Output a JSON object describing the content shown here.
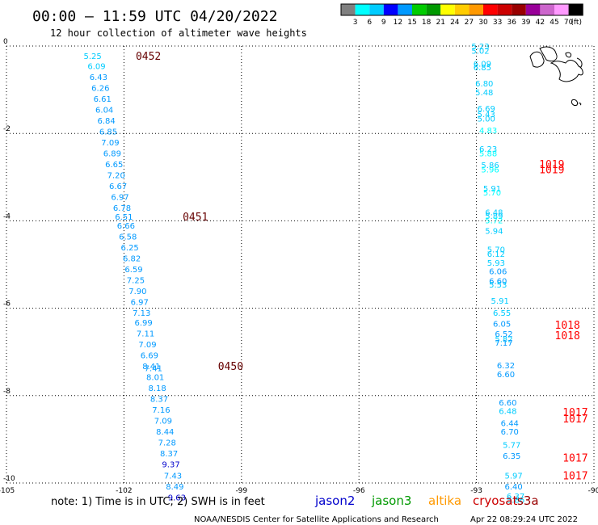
{
  "header": {
    "title": "00:00 — 11:59 UTC 04/20/2022",
    "subtitle": "12 hour collection of altimeter wave heights"
  },
  "legend": {
    "colors": [
      "#808080",
      "#00ffff",
      "#00ccff",
      "#0000ff",
      "#0099ff",
      "#00cc00",
      "#009900",
      "#ffff00",
      "#ffcc00",
      "#ff9900",
      "#ff0000",
      "#cc0000",
      "#990000",
      "#990099",
      "#cc66cc",
      "#ff99ff",
      "#000000"
    ],
    "labels": [
      "3",
      "6",
      "9",
      "12",
      "15",
      "18",
      "21",
      "24",
      "27",
      "30",
      "33",
      "36",
      "39",
      "42",
      "45",
      "70"
    ],
    "unit": "(ft)"
  },
  "note": "note:  1) Time is in UTC; 2) SWH is in feet",
  "satellites": [
    {
      "name": "jason2",
      "color": "#0000cc"
    },
    {
      "name": "jason3",
      "color": "#009900"
    },
    {
      "name": "altika",
      "color": "#ff9900"
    },
    {
      "name": "cryosat",
      "color": "#cc0000"
    },
    {
      "name": "s3a",
      "color": "#990000"
    }
  ],
  "footer": {
    "credit": "NOAA/NESDIS Center for Satellite Applications and Research",
    "timestamp": "Apr 22 08:29:24 UTC 2022"
  },
  "chart_data": {
    "type": "scatter",
    "title": "00:00 — 11:59 UTC 04/20/2022",
    "subtitle": "12 hour collection of altimeter wave heights",
    "xlim": [
      -105,
      -90
    ],
    "ylim": [
      -10,
      0
    ],
    "xticks": [
      -105,
      -102,
      -99,
      -96,
      -93,
      -90
    ],
    "yticks": [
      0,
      -2,
      -4,
      -6,
      -8,
      -10
    ],
    "xtick_labels": [
      "-105",
      "-102",
      "-99",
      "-96",
      "-93",
      "-90"
    ],
    "ytick_labels": [
      "0",
      "-2",
      "-4",
      "-6",
      "-8",
      "-10"
    ],
    "grid": true,
    "grid_style": "dotted",
    "units": "ft",
    "pass_labels": [
      {
        "text": "0452",
        "lon": -101.7,
        "lat": -0.22,
        "color": "#660000"
      },
      {
        "text": "0451",
        "lon": -100.5,
        "lat": -3.9,
        "color": "#660000"
      },
      {
        "text": "0450",
        "lon": -99.6,
        "lat": -7.32,
        "color": "#660000"
      },
      {
        "text": "1019",
        "lon": -91.4,
        "lat": -2.7,
        "color": "#ff0000"
      },
      {
        "text": "1019",
        "lon": -91.4,
        "lat": -2.82,
        "color": "#ff0000"
      },
      {
        "text": "1018",
        "lon": -91.0,
        "lat": -6.38,
        "color": "#ff0000"
      },
      {
        "text": "1018",
        "lon": -91.0,
        "lat": -6.62,
        "color": "#ff0000"
      },
      {
        "text": "1017",
        "lon": -90.8,
        "lat": -8.37,
        "color": "#ff0000"
      },
      {
        "text": "1017",
        "lon": -90.8,
        "lat": -8.52,
        "color": "#ff0000"
      },
      {
        "text": "1017",
        "lon": -90.8,
        "lat": -9.42,
        "color": "#ff0000"
      },
      {
        "text": "1017",
        "lon": -90.8,
        "lat": -9.82,
        "color": "#ff0000"
      }
    ],
    "tracks": [
      {
        "points": [
          {
            "lon": -102.8,
            "lat": -0.22,
            "v": "5.25",
            "color": "#00ccff"
          },
          {
            "lon": -102.7,
            "lat": -0.45,
            "v": "6.09",
            "color": "#00ccff"
          },
          {
            "lon": -102.65,
            "lat": -0.7,
            "v": "6.43",
            "color": "#0099ff"
          },
          {
            "lon": -102.6,
            "lat": -0.95,
            "v": "6.26",
            "color": "#0099ff"
          },
          {
            "lon": -102.55,
            "lat": -1.2,
            "v": "6.61",
            "color": "#0099ff"
          },
          {
            "lon": -102.5,
            "lat": -1.45,
            "v": "6.04",
            "color": "#0099ff"
          },
          {
            "lon": -102.45,
            "lat": -1.7,
            "v": "6.84",
            "color": "#0099ff"
          },
          {
            "lon": -102.4,
            "lat": -1.95,
            "v": "6.85",
            "color": "#0099ff"
          },
          {
            "lon": -102.35,
            "lat": -2.2,
            "v": "7.09",
            "color": "#0099ff"
          },
          {
            "lon": -102.3,
            "lat": -2.45,
            "v": "6.89",
            "color": "#0099ff"
          },
          {
            "lon": -102.25,
            "lat": -2.7,
            "v": "6.65",
            "color": "#0099ff"
          },
          {
            "lon": -102.2,
            "lat": -2.95,
            "v": "7.20",
            "color": "#0099ff"
          },
          {
            "lon": -102.15,
            "lat": -3.2,
            "v": "6.67",
            "color": "#0099ff"
          },
          {
            "lon": -102.1,
            "lat": -3.45,
            "v": "6.97",
            "color": "#0099ff"
          },
          {
            "lon": -102.05,
            "lat": -3.7,
            "v": "6.78",
            "color": "#0099ff"
          },
          {
            "lon": -102.0,
            "lat": -3.9,
            "v": "6.51",
            "color": "#0099ff"
          },
          {
            "lon": -101.95,
            "lat": -4.1,
            "v": "6.66",
            "color": "#0099ff"
          },
          {
            "lon": -101.9,
            "lat": -4.35,
            "v": "6.58",
            "color": "#0099ff"
          },
          {
            "lon": -101.85,
            "lat": -4.6,
            "v": "6.25",
            "color": "#0099ff"
          },
          {
            "lon": -101.8,
            "lat": -4.85,
            "v": "6.82",
            "color": "#0099ff"
          },
          {
            "lon": -101.75,
            "lat": -5.1,
            "v": "6.59",
            "color": "#0099ff"
          },
          {
            "lon": -101.7,
            "lat": -5.35,
            "v": "7.25",
            "color": "#0099ff"
          },
          {
            "lon": -101.65,
            "lat": -5.6,
            "v": "7.90",
            "color": "#0099ff"
          },
          {
            "lon": -101.6,
            "lat": -5.85,
            "v": "6.97",
            "color": "#0099ff"
          },
          {
            "lon": -101.55,
            "lat": -6.1,
            "v": "7.13",
            "color": "#0099ff"
          },
          {
            "lon": -101.5,
            "lat": -6.32,
            "v": "6.99",
            "color": "#0099ff"
          },
          {
            "lon": -101.45,
            "lat": -6.57,
            "v": "7.11",
            "color": "#0099ff"
          },
          {
            "lon": -101.4,
            "lat": -6.82,
            "v": "7.09",
            "color": "#0099ff"
          },
          {
            "lon": -101.35,
            "lat": -7.07,
            "v": "6.69",
            "color": "#0099ff"
          },
          {
            "lon": -101.3,
            "lat": -7.32,
            "v": "8.41",
            "color": "#0099ff"
          },
          {
            "lon": -101.25,
            "lat": -7.37,
            "v": "7.41",
            "color": "#0099ff"
          },
          {
            "lon": -101.2,
            "lat": -7.57,
            "v": "8.01",
            "color": "#0099ff"
          },
          {
            "lon": -101.15,
            "lat": -7.82,
            "v": "8.18",
            "color": "#0099ff"
          },
          {
            "lon": -101.1,
            "lat": -8.07,
            "v": "8.37",
            "color": "#0099ff"
          },
          {
            "lon": -101.05,
            "lat": -8.32,
            "v": "7.16",
            "color": "#0099ff"
          },
          {
            "lon": -101.0,
            "lat": -8.57,
            "v": "7.09",
            "color": "#0099ff"
          },
          {
            "lon": -100.95,
            "lat": -8.82,
            "v": "8.44",
            "color": "#0099ff"
          },
          {
            "lon": -100.9,
            "lat": -9.07,
            "v": "7.28",
            "color": "#0099ff"
          },
          {
            "lon": -100.85,
            "lat": -9.32,
            "v": "8.37",
            "color": "#0099ff"
          },
          {
            "lon": -100.8,
            "lat": -9.57,
            "v": "9.37",
            "color": "#0000cc"
          },
          {
            "lon": -100.75,
            "lat": -9.82,
            "v": "7.43",
            "color": "#0099ff"
          },
          {
            "lon": -100.7,
            "lat": -10.07,
            "v": "8.49",
            "color": "#0099ff"
          },
          {
            "lon": -100.65,
            "lat": -10.32,
            "v": "9.63",
            "color": "#0000cc"
          }
        ]
      },
      {
        "points": [
          {
            "lon": -92.9,
            "lat": 0.0,
            "v": "5.23",
            "color": "#00ccff"
          },
          {
            "lon": -92.9,
            "lat": -0.1,
            "v": "5.02",
            "color": "#00ccff"
          },
          {
            "lon": -92.85,
            "lat": -0.4,
            "v": "6.09",
            "color": "#00ccff"
          },
          {
            "lon": -92.85,
            "lat": -0.48,
            "v": "6.85",
            "color": "#00ccff"
          },
          {
            "lon": -92.8,
            "lat": -0.85,
            "v": "6.80",
            "color": "#00ccff"
          },
          {
            "lon": -92.8,
            "lat": -1.05,
            "v": "5.48",
            "color": "#00ccff"
          },
          {
            "lon": -92.75,
            "lat": -1.42,
            "v": "6.69",
            "color": "#00ccff"
          },
          {
            "lon": -92.75,
            "lat": -1.55,
            "v": "5.43",
            "color": "#00ccff"
          },
          {
            "lon": -92.75,
            "lat": -1.65,
            "v": "5.00",
            "color": "#00ccff"
          },
          {
            "lon": -92.7,
            "lat": -1.92,
            "v": "4.83",
            "color": "#00ffff"
          },
          {
            "lon": -92.7,
            "lat": -2.35,
            "v": "6.23",
            "color": "#00ccff"
          },
          {
            "lon": -92.7,
            "lat": -2.45,
            "v": "5.88",
            "color": "#00ffff"
          },
          {
            "lon": -92.65,
            "lat": -2.72,
            "v": "5.86",
            "color": "#00ccff"
          },
          {
            "lon": -92.65,
            "lat": -2.82,
            "v": "5.96",
            "color": "#00ffff"
          },
          {
            "lon": -92.6,
            "lat": -3.25,
            "v": "5.91",
            "color": "#00ccff"
          },
          {
            "lon": -92.6,
            "lat": -3.35,
            "v": "5.70",
            "color": "#00ffff"
          },
          {
            "lon": -92.55,
            "lat": -3.8,
            "v": "6.48",
            "color": "#00ccff"
          },
          {
            "lon": -92.55,
            "lat": -3.88,
            "v": "5.89",
            "color": "#00ccff"
          },
          {
            "lon": -92.55,
            "lat": -3.98,
            "v": "5.72",
            "color": "#00ffff"
          },
          {
            "lon": -92.55,
            "lat": -4.22,
            "v": "5.94",
            "color": "#00ccff"
          },
          {
            "lon": -92.5,
            "lat": -4.65,
            "v": "5.70",
            "color": "#00ccff"
          },
          {
            "lon": -92.5,
            "lat": -4.75,
            "v": "6.12",
            "color": "#00ccff"
          },
          {
            "lon": -92.5,
            "lat": -4.95,
            "v": "5.93",
            "color": "#00ccff"
          },
          {
            "lon": -92.45,
            "lat": -5.15,
            "v": "6.06",
            "color": "#0099ff"
          },
          {
            "lon": -92.45,
            "lat": -5.37,
            "v": "6.60",
            "color": "#0099ff"
          },
          {
            "lon": -92.45,
            "lat": -5.45,
            "v": "5.53",
            "color": "#00ccff"
          },
          {
            "lon": -92.4,
            "lat": -5.82,
            "v": "5.91",
            "color": "#00ccff"
          },
          {
            "lon": -92.35,
            "lat": -6.1,
            "v": "6.55",
            "color": "#00ccff"
          },
          {
            "lon": -92.35,
            "lat": -6.35,
            "v": "6.05",
            "color": "#0099ff"
          },
          {
            "lon": -92.3,
            "lat": -6.58,
            "v": "6.52",
            "color": "#0099ff"
          },
          {
            "lon": -92.3,
            "lat": -6.7,
            "v": "5.82",
            "color": "#00ccff"
          },
          {
            "lon": -92.3,
            "lat": -6.78,
            "v": "7.17",
            "color": "#0099ff"
          },
          {
            "lon": -92.25,
            "lat": -7.3,
            "v": "6.32",
            "color": "#0099ff"
          },
          {
            "lon": -92.25,
            "lat": -7.5,
            "v": "6.60",
            "color": "#0099ff"
          },
          {
            "lon": -92.2,
            "lat": -8.15,
            "v": "6.60",
            "color": "#0099ff"
          },
          {
            "lon": -92.2,
            "lat": -8.35,
            "v": "6.48",
            "color": "#00ccff"
          },
          {
            "lon": -92.15,
            "lat": -8.62,
            "v": "6.44",
            "color": "#0099ff"
          },
          {
            "lon": -92.15,
            "lat": -8.82,
            "v": "6.70",
            "color": "#0099ff"
          },
          {
            "lon": -92.1,
            "lat": -9.12,
            "v": "5.77",
            "color": "#00ccff"
          },
          {
            "lon": -92.1,
            "lat": -9.37,
            "v": "6.35",
            "color": "#0099ff"
          },
          {
            "lon": -92.05,
            "lat": -9.82,
            "v": "5.97",
            "color": "#00ccff"
          },
          {
            "lon": -92.05,
            "lat": -10.07,
            "v": "6.40",
            "color": "#0099ff"
          },
          {
            "lon": -92.0,
            "lat": -10.3,
            "v": "6.37",
            "color": "#00ccff"
          },
          {
            "lon": -92.0,
            "lat": -10.38,
            "v": "5.86",
            "color": "#00ccff"
          }
        ]
      }
    ]
  }
}
